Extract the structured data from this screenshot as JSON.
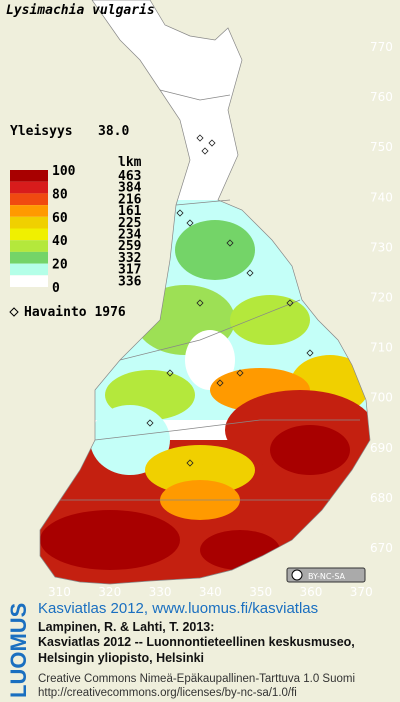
{
  "title": "Lysimachia vulgaris",
  "frequency": {
    "label": "Yleisyys",
    "value": "38.0"
  },
  "legend": {
    "scale_labels": [
      "100",
      "80",
      "60",
      "40",
      "20",
      "0"
    ],
    "count_header": "lkm",
    "counts": [
      "463",
      "384",
      "216",
      "161",
      "225",
      "234",
      "259",
      "332",
      "317",
      "336"
    ],
    "colors": [
      "#a80000",
      "#d81c1c",
      "#f04a10",
      "#ff9a00",
      "#f0d000",
      "#f0f000",
      "#b4e83c",
      "#74d468",
      "#b4ffe8",
      "#ffffff"
    ],
    "symbol_label": "Havainto 1976"
  },
  "axes": {
    "y_labels": [
      "770",
      "760",
      "750",
      "740",
      "730",
      "720",
      "710",
      "700",
      "690",
      "680",
      "670"
    ],
    "x_labels": [
      "310",
      "320",
      "330",
      "340",
      "350",
      "360",
      "370"
    ]
  },
  "badge": "BY-NC-SA",
  "footer": {
    "brand": "LUOMUS",
    "link": "Kasviatlas 2012, www.luomus.fi/kasviatlas",
    "citation": [
      "Lampinen, R. & Lahti, T. 2013:",
      "Kasviatlas 2012 -- Luonnontieteellinen keskusmuseo,",
      "Helsingin yliopisto, Helsinki"
    ],
    "license": [
      "Creative Commons Nimeä-Epäkaupallinen-Tarttuva 1.0 Suomi",
      "http://creativecommons.org/licenses/by-nc-sa/1.0/fi"
    ]
  }
}
